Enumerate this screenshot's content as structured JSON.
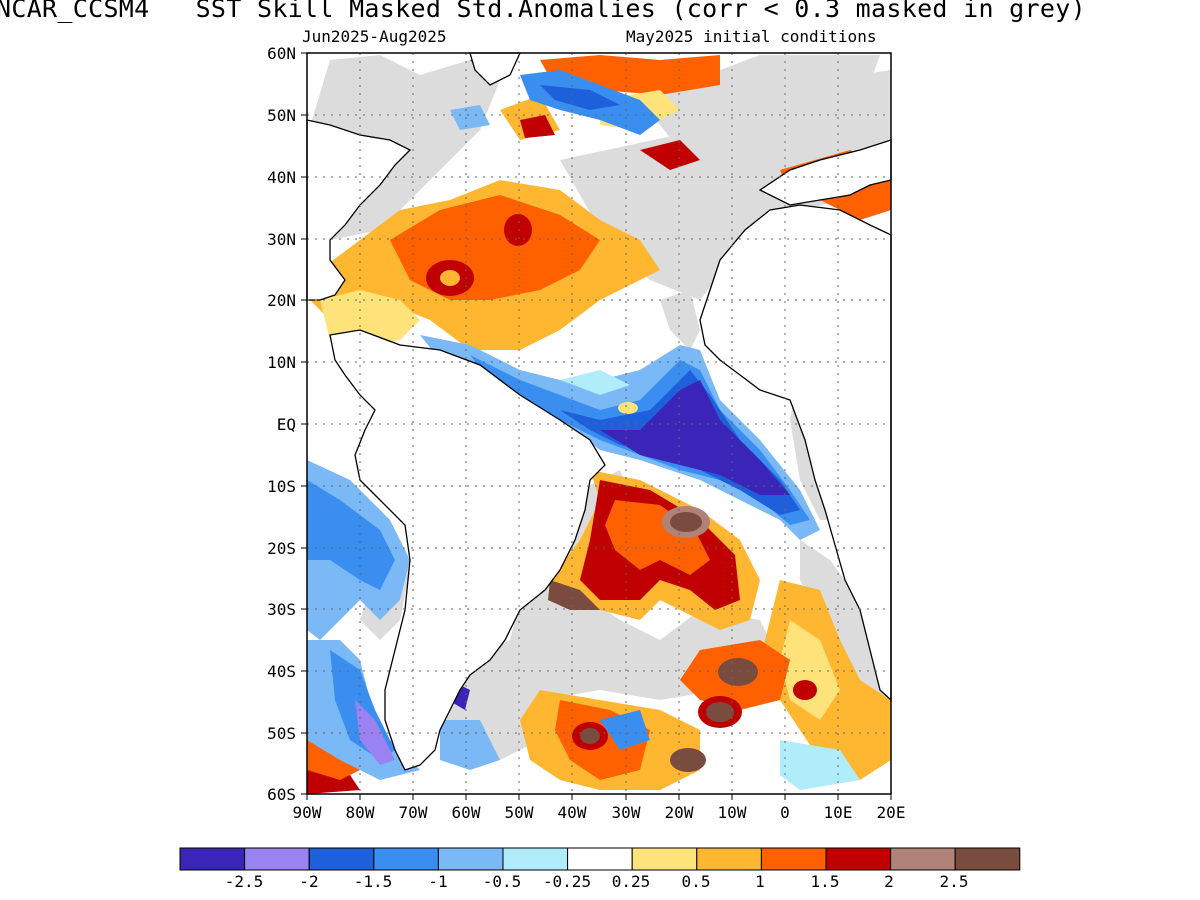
{
  "title": "NCAR_CCSM4   SST Skill Masked Std.Anomalies (corr < 0.3 masked in grey)",
  "subtitle_left": "Jun2025-Aug2025",
  "subtitle_right": "May2025 initial conditions",
  "lat_labels": [
    "60N",
    "50N",
    "40N",
    "30N",
    "20N",
    "10N",
    "EQ",
    "10S",
    "20S",
    "30S",
    "40S",
    "50S",
    "60S"
  ],
  "lon_labels": [
    "90W",
    "80W",
    "70W",
    "60W",
    "50W",
    "40W",
    "30W",
    "20W",
    "10W",
    "0",
    "10E",
    "20E"
  ],
  "colorbar": {
    "labels": [
      "-2.5",
      "-2",
      "-1.5",
      "-1",
      "-0.5",
      "-0.25",
      "0.25",
      "0.5",
      "1",
      "1.5",
      "2",
      "2.5"
    ],
    "colors": [
      "#3b25b8",
      "#9b82f2",
      "#1e5fdc",
      "#3a8ef0",
      "#7ab8f6",
      "#b0ecfa",
      "#ffffff",
      "#fee27a",
      "#ffb631",
      "#ff6000",
      "#c00000",
      "#b08278",
      "#7a4b3f"
    ]
  },
  "mask_color": "#dcdcdc"
}
